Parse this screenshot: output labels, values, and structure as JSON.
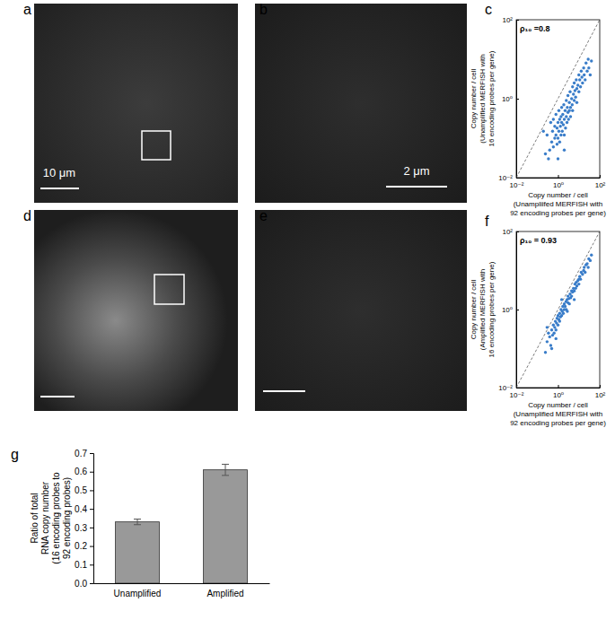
{
  "chart_data": [
    {
      "type": "image",
      "title": "a",
      "annotations": [
        "10 μm"
      ]
    },
    {
      "type": "image",
      "title": "b",
      "annotations": [
        "2 μm"
      ]
    },
    {
      "type": "scatter",
      "title": "c",
      "annotations": [
        "ρ₁₀ =0.8"
      ],
      "xlabel": [
        "Copy number / cell",
        "(Unampliifed MERFISH with",
        "92 encoding probes per gene)"
      ],
      "ylabel": [
        "Copy number / cell",
        "(Unamplified MERFISH with",
        "16 encoding probes per gene)"
      ],
      "log": true,
      "xlim": [
        0.01,
        100
      ],
      "ylim": [
        0.01,
        100
      ],
      "xticks": [
        {
          "value": 0.01,
          "label": "10⁻²"
        },
        {
          "value": 1,
          "label": "10⁰"
        },
        {
          "value": 100,
          "label": "10²"
        }
      ],
      "yticks": [
        {
          "value": 0.01,
          "label": "10⁻²"
        },
        {
          "value": 1,
          "label": "10⁰"
        },
        {
          "value": 100,
          "label": "10²"
        }
      ],
      "color": "#3a7dc9",
      "marker": "circle",
      "x": [
        0.3,
        0.4,
        0.45,
        0.5,
        0.55,
        0.6,
        0.6,
        0.7,
        0.7,
        0.8,
        0.8,
        0.9,
        0.9,
        1.0,
        1.0,
        1.1,
        1.1,
        1.2,
        1.2,
        1.3,
        1.4,
        1.4,
        1.5,
        1.5,
        1.6,
        1.7,
        1.8,
        1.9,
        2.0,
        2.0,
        2.2,
        2.3,
        2.5,
        2.5,
        2.7,
        2.8,
        3.0,
        3.0,
        3.2,
        3.5,
        3.5,
        3.8,
        4.0,
        4.0,
        4.5,
        4.8,
        5.0,
        5.0,
        5.5,
        6.0,
        6.0,
        6.5,
        7.0,
        7.5,
        8.0,
        8.0,
        9.0,
        10,
        10,
        11,
        12,
        13,
        14,
        15,
        17,
        18,
        20,
        22,
        25,
        28,
        30,
        35,
        40,
        0.25,
        0.35,
        1.0,
        2.0,
        0.2
      ],
      "values": [
        0.12,
        0.05,
        0.25,
        0.08,
        0.15,
        0.06,
        0.3,
        0.1,
        0.2,
        0.12,
        0.4,
        0.07,
        0.18,
        0.25,
        0.1,
        0.5,
        0.15,
        0.3,
        0.08,
        0.2,
        0.35,
        0.12,
        0.6,
        0.25,
        0.15,
        0.4,
        0.22,
        0.7,
        0.3,
        0.12,
        0.5,
        0.18,
        0.9,
        0.35,
        0.25,
        0.6,
        0.45,
        1.2,
        0.3,
        0.8,
        0.5,
        1.5,
        0.6,
        0.35,
        1.0,
        0.7,
        2.0,
        0.5,
        1.3,
        0.9,
        2.5,
        1.6,
        1.1,
        3.0,
        1.8,
        0.8,
        2.2,
        4.0,
        1.5,
        3.0,
        2.0,
        5.0,
        3.5,
        2.5,
        6.0,
        4.0,
        3.0,
        8.0,
        5.0,
        10,
        6.0,
        4.0,
        9.0,
        0.04,
        0.03,
        0.03,
        0.05,
        0.15
      ]
    },
    {
      "type": "image",
      "title": "d"
    },
    {
      "type": "image",
      "title": "e"
    },
    {
      "type": "scatter",
      "title": "f",
      "annotations": [
        "ρ₁₀ = 0.93"
      ],
      "xlabel": [
        "Copy number / cell",
        "(Unamplified MERFISH with",
        "92 encoding probes per gene)"
      ],
      "ylabel": [
        "Copy number / cell",
        "(Amplified MERFISH with",
        "16 encoding probes per gene)"
      ],
      "log": true,
      "xlim": [
        0.01,
        100
      ],
      "ylim": [
        0.01,
        100
      ],
      "xticks": [
        {
          "value": 0.01,
          "label": "10⁻²"
        },
        {
          "value": 1,
          "label": "10⁰"
        },
        {
          "value": 100,
          "label": "10²"
        }
      ],
      "yticks": [
        {
          "value": 0.01,
          "label": "10⁻²"
        },
        {
          "value": 1,
          "label": "10⁰"
        },
        {
          "value": 100,
          "label": "10²"
        }
      ],
      "color": "#3a7dc9",
      "marker": "circle",
      "x": [
        0.3,
        0.35,
        0.4,
        0.45,
        0.5,
        0.55,
        0.6,
        0.65,
        0.7,
        0.75,
        0.8,
        0.85,
        0.9,
        1.0,
        1.0,
        1.1,
        1.2,
        1.2,
        1.3,
        1.4,
        1.5,
        1.6,
        1.7,
        1.8,
        2.0,
        2.0,
        2.2,
        2.4,
        2.5,
        2.7,
        3.0,
        3.0,
        3.3,
        3.5,
        3.8,
        4.0,
        4.5,
        4.5,
        5.0,
        5.5,
        6.0,
        6.5,
        7.0,
        7.5,
        8.0,
        9.0,
        10,
        10,
        11,
        12,
        13,
        15,
        17,
        18,
        20,
        22,
        25,
        28,
        30,
        35,
        40,
        0.25,
        0.5,
        1.5,
        0.3,
        2.8,
        6,
        0.8
      ],
      "values": [
        0.15,
        0.25,
        0.2,
        0.12,
        0.3,
        0.22,
        0.4,
        0.25,
        0.35,
        0.5,
        0.3,
        0.45,
        0.6,
        0.4,
        0.7,
        0.55,
        0.8,
        0.5,
        0.65,
        1.0,
        0.7,
        0.9,
        1.2,
        0.8,
        1.0,
        1.4,
        1.2,
        1.6,
        1.0,
        1.8,
        1.5,
        2.2,
        1.9,
        1.4,
        2.5,
        2.0,
        3.0,
        2.2,
        2.8,
        3.5,
        3.0,
        4.5,
        3.5,
        5.0,
        4.0,
        5.5,
        6.0,
        4.5,
        7.0,
        6.0,
        9.0,
        8.0,
        10,
        12,
        9.0,
        14,
        15,
        12,
        20,
        18,
        25,
        0.08,
        0.1,
        1.8,
        0.35,
        0.9,
        1.8,
        0.18
      ]
    },
    {
      "type": "bar",
      "title": "g",
      "categories": [
        "Unamplified",
        "Amplified"
      ],
      "values": [
        0.33,
        0.61
      ],
      "errors": [
        0.015,
        0.03
      ],
      "color": "#999999",
      "ylabel": [
        "Ratio of total",
        "RNA copy number",
        "(16 encoding probes to",
        "92 encoding probes)"
      ],
      "ylim": [
        0,
        0.7
      ],
      "yticks": [
        {
          "value": 0,
          "label": "0.0"
        },
        0.1,
        0.2,
        0.3,
        0.4,
        0.5,
        0.6,
        0.7
      ]
    }
  ]
}
